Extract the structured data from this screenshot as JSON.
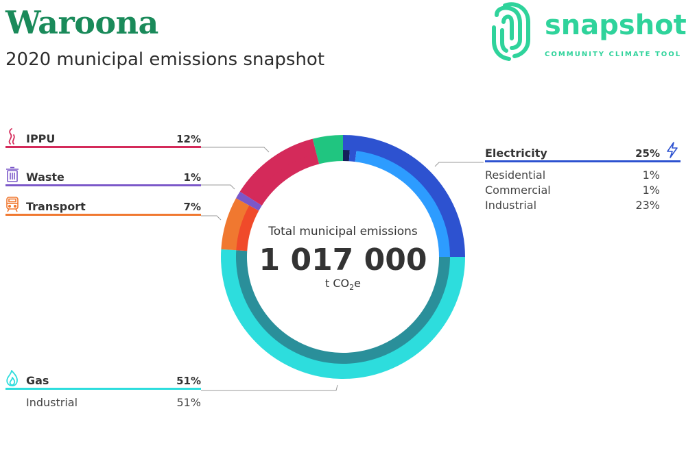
{
  "header": {
    "title": "Waroona",
    "subtitle": "2020 municipal emissions snapshot"
  },
  "logo": {
    "word": "snapshot",
    "tagline": "COMMUNITY CLIMATE TOOL",
    "color": "#2fd39b"
  },
  "center": {
    "label": "Total municipal emissions",
    "value": "1 017 000",
    "unit_prefix": "t CO",
    "unit_sub": "2",
    "unit_suffix": "e"
  },
  "sectors": {
    "electricity": {
      "name": "Electricity",
      "pct": "25%",
      "icon": "lightning-icon",
      "color": "#2d52d0",
      "subs": [
        {
          "name": "Residential",
          "pct": "1%"
        },
        {
          "name": "Commercial",
          "pct": "1%"
        },
        {
          "name": "Industrial",
          "pct": "23%"
        }
      ]
    },
    "gas": {
      "name": "Gas",
      "pct": "51%",
      "icon": "flame-icon",
      "color": "#2ddddd",
      "subs": [
        {
          "name": "Industrial",
          "pct": "51%"
        }
      ]
    },
    "transport": {
      "name": "Transport",
      "pct": "7%",
      "icon": "train-icon",
      "color": "#f07830"
    },
    "waste": {
      "name": "Waste",
      "pct": "1%",
      "icon": "bin-icon",
      "color": "#7b58c9"
    },
    "ippu": {
      "name": "IPPU",
      "pct": "12%",
      "icon": "smoke-icon",
      "color": "#d42a5a"
    }
  },
  "chart_data": {
    "type": "pie",
    "style": "donut",
    "total": 1017000,
    "unit": "t CO2e",
    "start": "top",
    "direction": "clockwise",
    "outer_ring": [
      {
        "name": "Electricity",
        "value": 25,
        "color": "#2d52d0"
      },
      {
        "name": "Gas",
        "value": 51,
        "color": "#2ddddd"
      },
      {
        "name": "Transport",
        "value": 7,
        "color": "#f07830"
      },
      {
        "name": "Waste",
        "value": 1,
        "color": "#7b58c9"
      },
      {
        "name": "IPPU",
        "value": 12,
        "color": "#d42a5a"
      },
      {
        "name": "",
        "value": 4,
        "color": "#20c580"
      }
    ],
    "inner_ring": [
      {
        "name": "Electricity Residential",
        "value": 1,
        "color": "#15205a"
      },
      {
        "name": "Electricity Commercial",
        "value": 1,
        "color": "#2d52d0"
      },
      {
        "name": "Electricity Industrial",
        "value": 23,
        "color": "#2d9cff"
      },
      {
        "name": "Gas Industrial",
        "value": 51,
        "color": "#2a8f9a"
      },
      {
        "name": "Transport",
        "value": 7,
        "color": "#f04a2a"
      },
      {
        "name": "Waste",
        "value": 1,
        "color": "#7b58c9"
      },
      {
        "name": "IPPU",
        "value": 12,
        "color": "#d42a5a"
      },
      {
        "name": "",
        "value": 4,
        "color": "#20c580"
      }
    ]
  }
}
